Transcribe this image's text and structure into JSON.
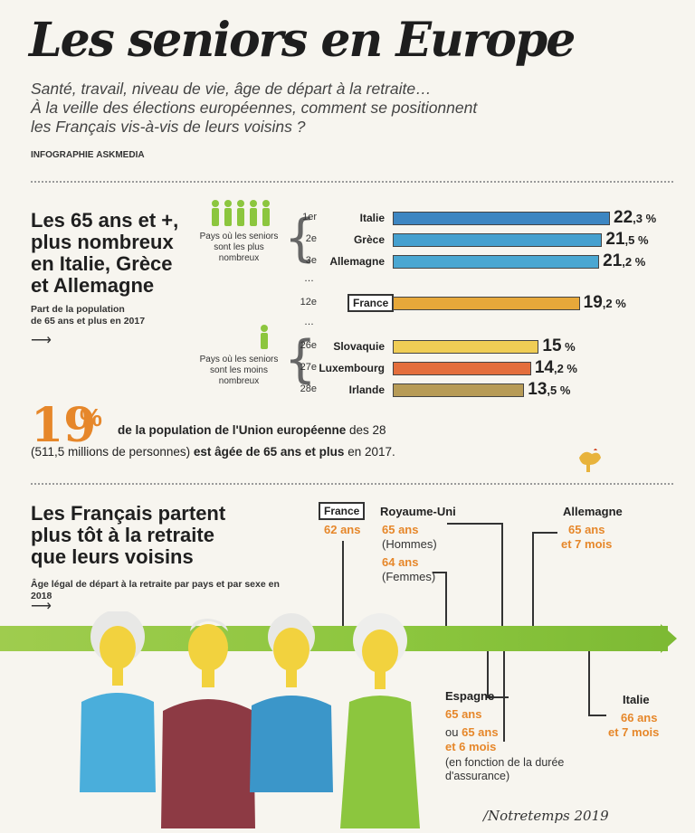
{
  "header": {
    "title": "Les seniors en Europe",
    "subtitle_lines": [
      "Santé, travail, niveau de vie, âge de départ à la retraite…",
      "À la veille des élections européennes, comment se positionnent",
      "les Français vis-à-vis de leurs voisins ?"
    ],
    "credit_prefix": "INFOGRAPHIE",
    "credit_brand": "ASKMEDIA"
  },
  "section1": {
    "heading_lines": [
      "Les 65 ans et +,",
      "plus nombreux",
      "en Italie, Grèce",
      "et Allemagne"
    ],
    "caption_lines": [
      "Part de la population",
      "de 65 ans et plus en 2017"
    ],
    "note_top": [
      "Pays où les seniors",
      "sont les plus",
      "nombreux"
    ],
    "note_bottom": [
      "Pays où les seniors",
      "sont les moins",
      "nombreux"
    ],
    "ellipsis": "…"
  },
  "chart_data": {
    "type": "bar",
    "title": "Les 65 ans et +, plus nombreux en Italie, Grèce et Allemagne",
    "subtitle": "Part de la population de 65 ans et plus en 2017",
    "categories": [
      "Italie",
      "Grèce",
      "Allemagne",
      "France",
      "Slovaquie",
      "Luxembourg",
      "Irlande"
    ],
    "ranks": [
      "1er",
      "2e",
      "3e",
      "12e",
      "26e",
      "27e",
      "28e"
    ],
    "values": [
      22.3,
      21.5,
      21.2,
      19.2,
      15,
      14.2,
      13.5
    ],
    "labels_main": [
      "22",
      "21",
      "21",
      "19",
      "15",
      "14",
      "13"
    ],
    "labels_dec": [
      ",3 %",
      ",5 %",
      ",2 %",
      ",2 %",
      " %",
      ",2 %",
      ",5 %"
    ],
    "unit": "%"
  },
  "colors": {
    "italie": "#3d86c2",
    "grece": "#45a0cf",
    "allemagne": "#4aa7d2",
    "france": "#e7a83a",
    "slovaquie": "#f0cd55",
    "luxembourg": "#e46e3c",
    "irlande": "#b79b56",
    "accent": "#e6872a",
    "green": "#8cc63e"
  },
  "stat": {
    "big": "19",
    "pct": "%",
    "line1_bold": "de la population de l'Union européenne",
    "line1_rest": " des 28",
    "line2_start": "(511,5 millions de personnes) ",
    "line2_bold": "est âgée de 65 ans et plus",
    "line2_end": " en 2017."
  },
  "section2": {
    "heading_lines": [
      "Les Français partent",
      "plus tôt à la retraite",
      "que leurs voisins"
    ],
    "caption": "Âge légal de départ à la retraite par pays et par sexe en 2018",
    "france": {
      "country": "France",
      "age": "62 ans"
    },
    "royaume_uni": {
      "country": "Royaume-Uni",
      "age_h": "65 ans",
      "sex_h": "(Hommes)",
      "age_f": "64 ans",
      "sex_f": "(Femmes)"
    },
    "allemagne": {
      "country": "Allemagne",
      "age1": "65 ans",
      "age2": "et 7 mois"
    },
    "espagne": {
      "country": "Espagne",
      "age1": "65 ans",
      "ou": "ou",
      "age2": "65 ans",
      "age3": "et 6 mois",
      "note1": "(en fonction de la durée",
      "note2": "d'assurance)"
    },
    "italie": {
      "country": "Italie",
      "age1": "66 ans",
      "age2": "et 7 mois"
    }
  },
  "signature": "/Notretemps 2019"
}
